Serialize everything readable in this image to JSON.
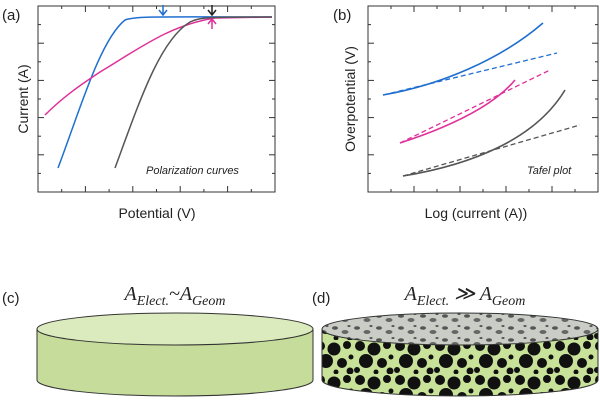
{
  "panels": [
    {
      "label": "(a)",
      "xlabel": "Potential (V)",
      "ylabel": "Current (A)",
      "annotation": "Polarization curves"
    },
    {
      "label": "(b)",
      "xlabel": "Log (current (A))",
      "ylabel": "Overpotential (V)",
      "annotation": "Tafel plot"
    },
    {
      "label": "(c)",
      "formula": {
        "a": "A",
        "sub1": "Elect.",
        "rel": "~",
        "b": "A",
        "sub2": "Geom"
      }
    },
    {
      "label": "(d)",
      "formula": {
        "a": "A",
        "sub1": "Elect.",
        "rel": " ≫ ",
        "b": "A",
        "sub2": "Geom"
      }
    }
  ]
}
